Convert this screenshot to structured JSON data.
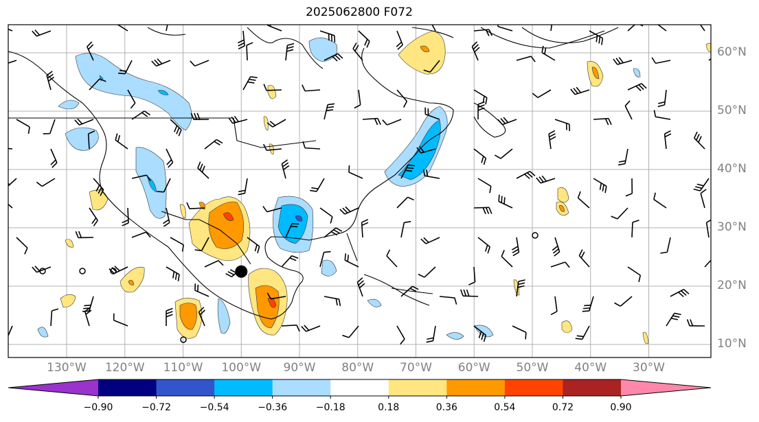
{
  "title": "2025062800 F072",
  "map": {
    "lat_labels": [
      {
        "lat": 60,
        "text": "60°N"
      },
      {
        "lat": 50,
        "text": "50°N"
      },
      {
        "lat": 40,
        "text": "40°N"
      },
      {
        "lat": 30,
        "text": "30°N"
      },
      {
        "lat": 20,
        "text": "20°N"
      },
      {
        "lat": 10,
        "text": "10°N"
      }
    ],
    "lon_labels": [
      {
        "lon": -130,
        "text": "130°W"
      },
      {
        "lon": -120,
        "text": "120°W"
      },
      {
        "lon": -110,
        "text": "110°W"
      },
      {
        "lon": -100,
        "text": "100°W"
      },
      {
        "lon": -90,
        "text": "90°W"
      },
      {
        "lon": -80,
        "text": "80°W"
      },
      {
        "lon": -70,
        "text": "70°W"
      },
      {
        "lon": -60,
        "text": "60°W"
      },
      {
        "lon": -50,
        "text": "50°W"
      },
      {
        "lon": -40,
        "text": "40°W"
      },
      {
        "lon": -30,
        "text": "30°W"
      }
    ],
    "colorbar": {
      "ticks": [
        "−0.90",
        "−0.72",
        "−0.54",
        "−0.36",
        "−0.18",
        "0.18",
        "0.36",
        "0.54",
        "0.72",
        "0.90"
      ],
      "colors": [
        "#9933cc",
        "#000080",
        "#3355cc",
        "#00bbff",
        "#aaddff",
        "#ffffff",
        "#ffe680",
        "#ff9900",
        "#ff4400",
        "#aa2222",
        "#ff88aa"
      ]
    },
    "marker": {
      "lon": -100,
      "lat": 22.5
    }
  }
}
